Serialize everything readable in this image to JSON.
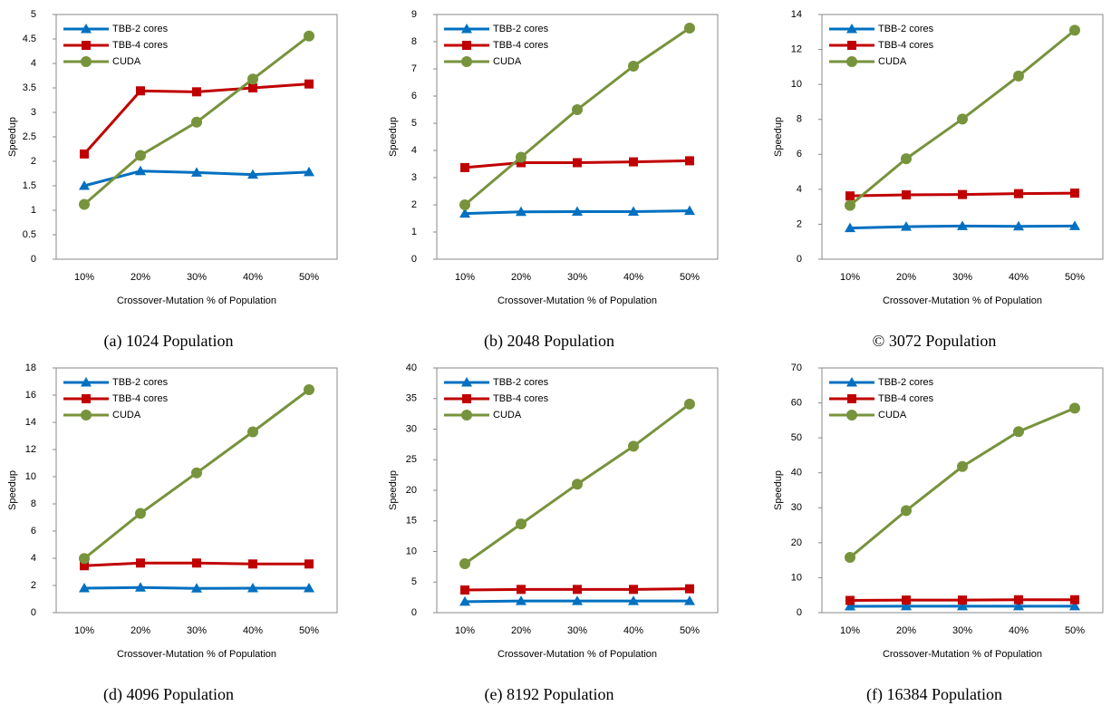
{
  "chart_data": [
    {
      "type": "line",
      "caption": "(a) 1024 Population",
      "x_label": "Crossover-Mutation % of Population",
      "y_label": "Speedup",
      "categories": [
        "10%",
        "20%",
        "30%",
        "40%",
        "50%"
      ],
      "ylim": [
        0,
        5
      ],
      "yticks": [
        0,
        0.5,
        1,
        1.5,
        2,
        2.5,
        3,
        3.5,
        4,
        4.5,
        5
      ],
      "series": [
        {
          "name": "TBB-2 cores",
          "color": "#0070c0",
          "marker": "triangle",
          "values": [
            1.5,
            1.8,
            1.77,
            1.73,
            1.78
          ]
        },
        {
          "name": "TBB-4 cores",
          "color": "#c00000",
          "marker": "square",
          "values": [
            2.15,
            3.44,
            3.42,
            3.5,
            3.58
          ]
        },
        {
          "name": "CUDA",
          "color": "#77933c",
          "marker": "circle",
          "values": [
            1.12,
            2.12,
            2.8,
            3.68,
            4.56
          ]
        }
      ]
    },
    {
      "type": "line",
      "caption": "(b) 2048 Population",
      "x_label": "Crossover-Mutation % of Population",
      "y_label": "Speedup",
      "categories": [
        "10%",
        "20%",
        "30%",
        "40%",
        "50%"
      ],
      "ylim": [
        0,
        9
      ],
      "yticks": [
        0,
        1,
        2,
        3,
        4,
        5,
        6,
        7,
        8,
        9
      ],
      "series": [
        {
          "name": "TBB-2 cores",
          "color": "#0070c0",
          "marker": "triangle",
          "values": [
            1.68,
            1.74,
            1.75,
            1.75,
            1.78
          ]
        },
        {
          "name": "TBB-4 cores",
          "color": "#c00000",
          "marker": "square",
          "values": [
            3.37,
            3.55,
            3.55,
            3.58,
            3.62
          ]
        },
        {
          "name": "CUDA",
          "color": "#77933c",
          "marker": "circle",
          "values": [
            2.0,
            3.75,
            5.5,
            7.1,
            8.5
          ]
        }
      ]
    },
    {
      "type": "line",
      "caption": "© 3072 Population",
      "x_label": "Crossover-Mutation % of Population",
      "y_label": "Speedup",
      "categories": [
        "10%",
        "20%",
        "30%",
        "40%",
        "50%"
      ],
      "ylim": [
        0,
        14
      ],
      "yticks": [
        0,
        2,
        4,
        6,
        8,
        10,
        12,
        14
      ],
      "series": [
        {
          "name": "TBB-2 cores",
          "color": "#0070c0",
          "marker": "triangle",
          "values": [
            1.78,
            1.86,
            1.9,
            1.88,
            1.9
          ]
        },
        {
          "name": "TBB-4 cores",
          "color": "#c00000",
          "marker": "square",
          "values": [
            3.62,
            3.68,
            3.7,
            3.75,
            3.78
          ]
        },
        {
          "name": "CUDA",
          "color": "#77933c",
          "marker": "circle",
          "values": [
            3.08,
            5.75,
            8.02,
            10.48,
            13.1
          ]
        }
      ]
    },
    {
      "type": "line",
      "caption": "(d) 4096 Population",
      "x_label": "Crossover-Mutation % of Population",
      "y_label": "Speedup",
      "categories": [
        "10%",
        "20%",
        "30%",
        "40%",
        "50%"
      ],
      "ylim": [
        0,
        18
      ],
      "yticks": [
        0,
        2,
        4,
        6,
        8,
        10,
        12,
        14,
        16,
        18
      ],
      "series": [
        {
          "name": "TBB-2 cores",
          "color": "#0070c0",
          "marker": "triangle",
          "values": [
            1.8,
            1.85,
            1.78,
            1.8,
            1.8
          ]
        },
        {
          "name": "TBB-4 cores",
          "color": "#c00000",
          "marker": "square",
          "values": [
            3.45,
            3.65,
            3.65,
            3.58,
            3.58
          ]
        },
        {
          "name": "CUDA",
          "color": "#77933c",
          "marker": "circle",
          "values": [
            3.98,
            7.3,
            10.28,
            13.3,
            16.4
          ]
        }
      ]
    },
    {
      "type": "line",
      "caption": "(e) 8192 Population",
      "x_label": "Crossover-Mutation % of Population",
      "y_label": "Speedup",
      "categories": [
        "10%",
        "20%",
        "30%",
        "40%",
        "50%"
      ],
      "ylim": [
        0,
        40
      ],
      "yticks": [
        0,
        5,
        10,
        15,
        20,
        25,
        30,
        35,
        40
      ],
      "series": [
        {
          "name": "TBB-2 cores",
          "color": "#0070c0",
          "marker": "triangle",
          "values": [
            1.8,
            1.9,
            1.9,
            1.9,
            1.9
          ]
        },
        {
          "name": "TBB-4 cores",
          "color": "#c00000",
          "marker": "square",
          "values": [
            3.7,
            3.8,
            3.8,
            3.8,
            3.9
          ]
        },
        {
          "name": "CUDA",
          "color": "#77933c",
          "marker": "circle",
          "values": [
            8.0,
            14.5,
            21.0,
            27.2,
            34.1
          ]
        }
      ]
    },
    {
      "type": "line",
      "caption": "(f) 16384 Population",
      "x_label": "Crossover-Mutation % of Population",
      "y_label": "Speedup",
      "categories": [
        "10%",
        "20%",
        "30%",
        "40%",
        "50%"
      ],
      "ylim": [
        0,
        70
      ],
      "yticks": [
        0,
        10,
        20,
        30,
        40,
        50,
        60,
        70
      ],
      "series": [
        {
          "name": "TBB-2 cores",
          "color": "#0070c0",
          "marker": "triangle",
          "values": [
            1.8,
            1.85,
            1.85,
            1.85,
            1.85
          ]
        },
        {
          "name": "TBB-4 cores",
          "color": "#c00000",
          "marker": "square",
          "values": [
            3.5,
            3.6,
            3.6,
            3.7,
            3.7
          ]
        },
        {
          "name": "CUDA",
          "color": "#77933c",
          "marker": "circle",
          "values": [
            15.8,
            29.2,
            41.8,
            51.8,
            58.5
          ]
        }
      ]
    }
  ]
}
